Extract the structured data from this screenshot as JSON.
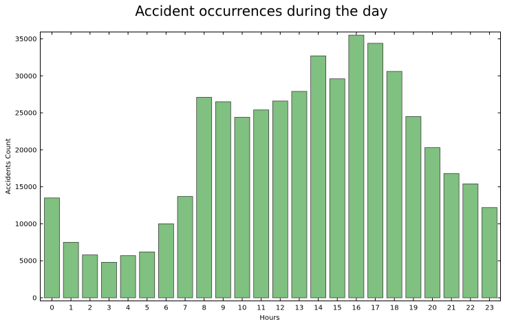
{
  "chart_data": {
    "type": "bar",
    "title": "Accident occurrences during the day",
    "xlabel": "Hours",
    "ylabel": "Accidents Count",
    "categories": [
      "0",
      "1",
      "2",
      "3",
      "4",
      "5",
      "6",
      "7",
      "8",
      "9",
      "10",
      "11",
      "12",
      "13",
      "14",
      "15",
      "16",
      "17",
      "18",
      "19",
      "20",
      "21",
      "22",
      "23"
    ],
    "values": [
      13500,
      7500,
      5800,
      4800,
      5700,
      6200,
      10000,
      13700,
      27100,
      26500,
      24400,
      25400,
      26600,
      27900,
      32700,
      29600,
      35500,
      34400,
      30600,
      24500,
      20300,
      16800,
      15400,
      12200
    ],
    "ylim": [
      0,
      36000
    ],
    "yticks": [
      0,
      5000,
      10000,
      15000,
      20000,
      25000,
      30000,
      35000
    ],
    "grid": false,
    "bar_color": "#80c080",
    "edge_color": "#3f3f3f"
  }
}
